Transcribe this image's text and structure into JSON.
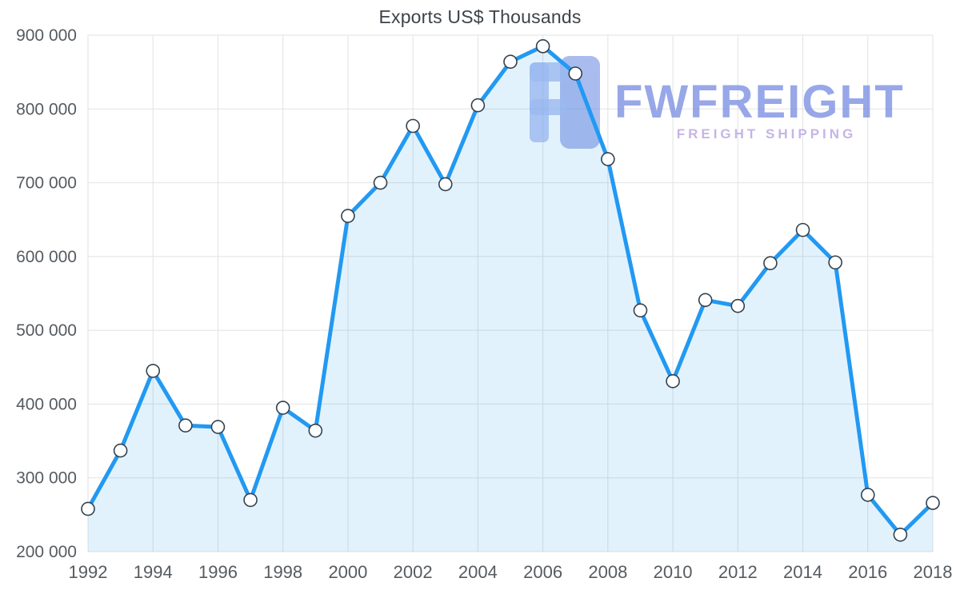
{
  "chart_data": {
    "type": "area",
    "title": "Exports US$ Thousands",
    "x": [
      1992,
      1993,
      1994,
      1995,
      1996,
      1997,
      1998,
      1999,
      2000,
      2001,
      2002,
      2003,
      2004,
      2005,
      2006,
      2007,
      2008,
      2009,
      2010,
      2011,
      2012,
      2013,
      2014,
      2015,
      2016,
      2017,
      2018
    ],
    "values": [
      258000,
      337000,
      445000,
      371000,
      369000,
      270000,
      395000,
      364000,
      655000,
      700000,
      777000,
      698000,
      805000,
      864000,
      885000,
      848000,
      732000,
      527000,
      431000,
      541000,
      533000,
      591000,
      636000,
      592000,
      277000,
      223000,
      266000
    ],
    "ylim": [
      200000,
      900000
    ],
    "y_ticks": [
      200000,
      300000,
      400000,
      500000,
      600000,
      700000,
      800000,
      900000
    ],
    "x_ticks": [
      1992,
      1994,
      1996,
      1998,
      2000,
      2002,
      2004,
      2006,
      2008,
      2010,
      2012,
      2014,
      2016,
      2018
    ],
    "grid": true,
    "legend": "none",
    "line_color": "#2299f2",
    "fill_color": "rgba(34,153,242,0.13)",
    "grid_color": "#e2e2e2",
    "marker_fill": "#ffffff",
    "marker_stroke": "#33414e"
  },
  "watermark": {
    "brand": "FWFREIGHT",
    "tagline": "FREIGHT SHIPPING",
    "brand_color": "#7e92e3",
    "tagline_color": "#b9a3e0"
  }
}
